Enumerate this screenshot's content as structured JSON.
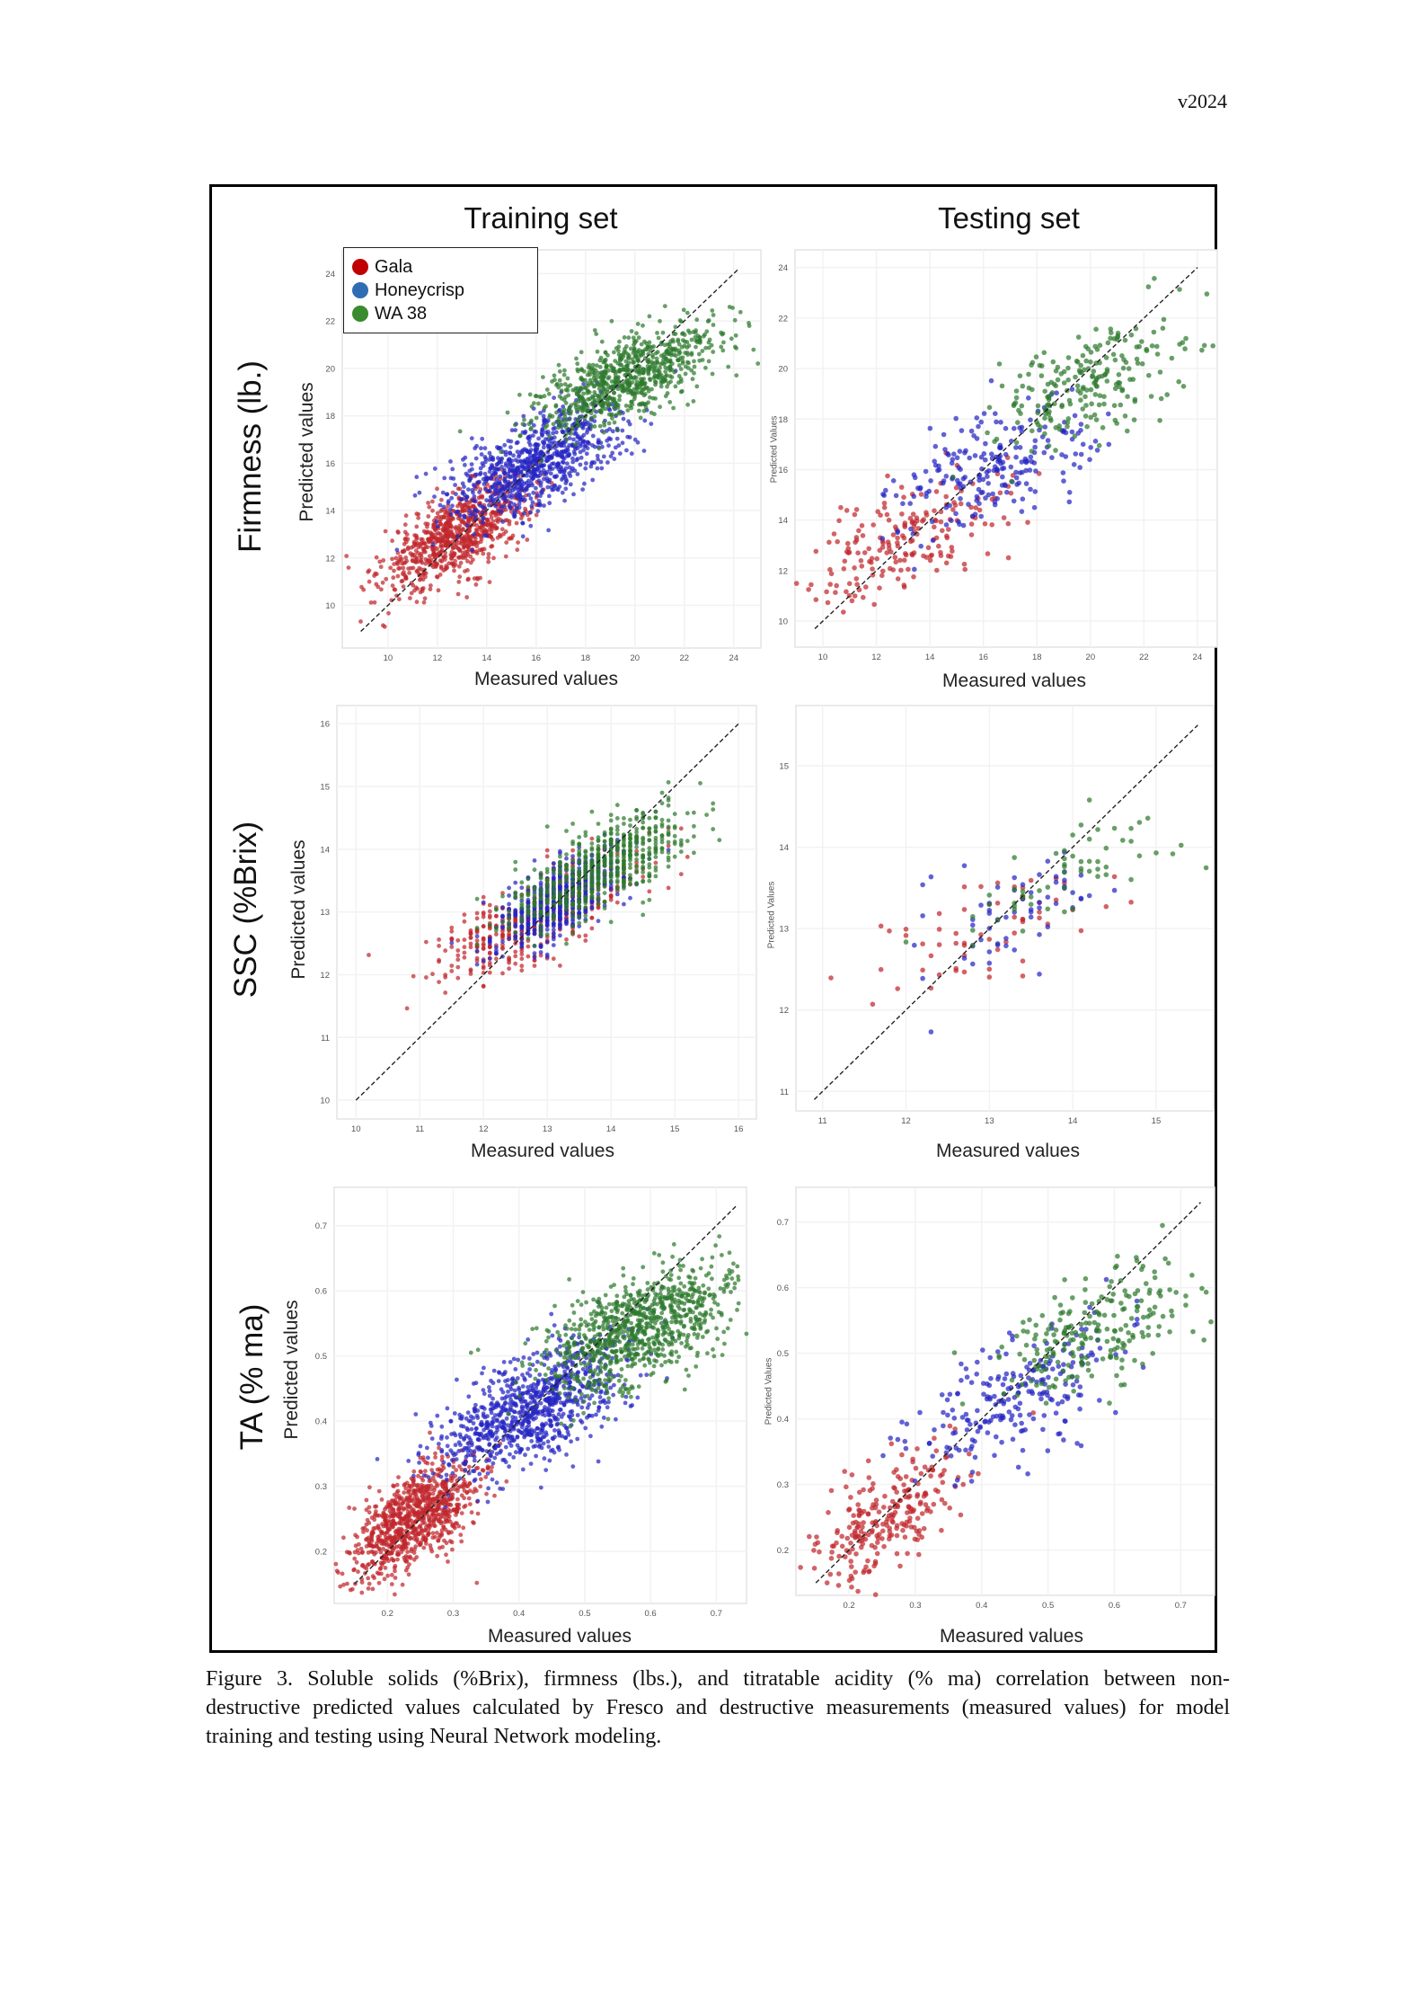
{
  "header": {
    "version": "v2024"
  },
  "columns": {
    "training": "Training set",
    "testing": "Testing set"
  },
  "rows": {
    "firmness": "Firmness (lb.)",
    "ssc": "SSC (%Brix)",
    "ta": "TA (% ma)"
  },
  "axis_labels": {
    "predicted": "Predicted values",
    "predicted_test": "Predicted Values",
    "measured": "Measured values"
  },
  "legend": {
    "items": [
      {
        "label": "Gala",
        "color": "#c00000"
      },
      {
        "label": "Honeycrisp",
        "color": "#2e6db4"
      },
      {
        "label": "WA 38",
        "color": "#3a8a2e"
      }
    ]
  },
  "caption": {
    "lines": [
      "Figure 3. Soluble solids (%Brix), firmness (lbs.), and titratable acidity (% ma) correlation between non-",
      "destructive predicted values calculated by Fresco and destructive measurements (measured values) for model",
      "training and testing using Neural Network modeling."
    ]
  },
  "chart_data": [
    {
      "id": "firm_train",
      "type": "scatter",
      "title": "Firmness (lb.) - Training set",
      "xlabel": "Measured values",
      "ylabel": "Predicted values",
      "xlim": [
        8.15,
        25.1
      ],
      "ylim": [
        8.2,
        25.0
      ],
      "xticks": [
        10,
        12,
        14,
        16,
        18,
        20,
        22,
        24
      ],
      "yticks": [
        10,
        12,
        14,
        16,
        18,
        20,
        22,
        24
      ],
      "identity_line": [
        8.9,
        24.2
      ],
      "grid": true,
      "legend": "top-left",
      "series": [
        {
          "name": "Gala",
          "color": "#c0272d",
          "cluster": {
            "mx": 12.8,
            "my": 13.0,
            "sdx": 1.5,
            "slope": 0.5,
            "sde": 0.85,
            "n": 800
          }
        },
        {
          "name": "Honeycrisp",
          "color": "#2626c4",
          "cluster": {
            "mx": 16.0,
            "my": 16.0,
            "sdx": 1.8,
            "slope": 0.45,
            "sde": 0.95,
            "n": 800
          }
        },
        {
          "name": "WA 38",
          "color": "#2e7a2e",
          "cluster": {
            "mx": 19.6,
            "my": 19.6,
            "sdx": 1.8,
            "slope": 0.4,
            "sde": 0.8,
            "n": 800
          }
        }
      ]
    },
    {
      "id": "firm_test",
      "type": "scatter",
      "title": "Firmness (lb.) - Testing set",
      "xlabel": "Measured values",
      "ylabel": "Predicted Values",
      "xlim": [
        8.96,
        24.74
      ],
      "ylim": [
        8.97,
        24.7
      ],
      "xticks": [
        10,
        12,
        14,
        16,
        18,
        20,
        22,
        24
      ],
      "yticks": [
        10,
        12,
        14,
        16,
        18,
        20,
        22,
        24
      ],
      "identity_line": [
        9.7,
        24.0
      ],
      "grid": true,
      "series": [
        {
          "name": "Gala",
          "color": "#c0272d",
          "cluster": {
            "mx": 13.3,
            "my": 13.2,
            "sdx": 2.0,
            "slope": 0.4,
            "sde": 1.1,
            "n": 200
          }
        },
        {
          "name": "Honeycrisp",
          "color": "#2626c4",
          "cluster": {
            "mx": 16.3,
            "my": 16.0,
            "sdx": 1.8,
            "slope": 0.35,
            "sde": 1.1,
            "n": 220
          }
        },
        {
          "name": "WA 38",
          "color": "#2e7a2e",
          "cluster": {
            "mx": 20.0,
            "my": 19.5,
            "sdx": 1.8,
            "slope": 0.35,
            "sde": 1.0,
            "n": 220
          }
        }
      ]
    },
    {
      "id": "ssc_train",
      "type": "scatter",
      "title": "SSC (%Brix) - Training set",
      "xlabel": "Measured values",
      "ylabel": "Predicted values",
      "xlim": [
        9.7,
        16.28
      ],
      "ylim": [
        9.7,
        16.29
      ],
      "xticks": [
        10,
        11,
        12,
        13,
        14,
        15,
        16
      ],
      "yticks": [
        10,
        11,
        12,
        13,
        14,
        15,
        16
      ],
      "identity_line": [
        10.0,
        16.0
      ],
      "grid": true,
      "x_step": 0.1,
      "series": [
        {
          "name": "Gala",
          "color": "#c0272d",
          "cluster": {
            "mx": 12.8,
            "my": 12.9,
            "sdx": 0.8,
            "slope": 0.45,
            "sde": 0.33,
            "n": 500
          }
        },
        {
          "name": "Honeycrisp",
          "color": "#2626c4",
          "cluster": {
            "mx": 13.2,
            "my": 13.2,
            "sdx": 0.5,
            "slope": 0.5,
            "sde": 0.28,
            "n": 600
          }
        },
        {
          "name": "WA 38",
          "color": "#2e7a2e",
          "cluster": {
            "mx": 13.8,
            "my": 13.7,
            "sdx": 0.7,
            "slope": 0.5,
            "sde": 0.33,
            "n": 600
          }
        }
      ]
    },
    {
      "id": "ssc_test",
      "type": "scatter",
      "title": "SSC (%Brix) - Testing set",
      "xlabel": "Measured values",
      "ylabel": "Predicted Values",
      "xlim": [
        10.68,
        15.69
      ],
      "ylim": [
        10.76,
        15.74
      ],
      "xticks": [
        11,
        12,
        13,
        14,
        15
      ],
      "yticks": [
        11,
        12,
        13,
        14,
        15
      ],
      "identity_line": [
        10.9,
        15.5
      ],
      "grid": true,
      "x_step": 0.1,
      "series": [
        {
          "name": "Gala",
          "color": "#c0272d",
          "cluster": {
            "mx": 12.9,
            "my": 12.9,
            "sdx": 0.8,
            "slope": 0.4,
            "sde": 0.33,
            "n": 60
          }
        },
        {
          "name": "Honeycrisp",
          "color": "#2626c4",
          "cluster": {
            "mx": 13.4,
            "my": 13.2,
            "sdx": 0.6,
            "slope": 0.4,
            "sde": 0.33,
            "n": 60
          }
        },
        {
          "name": "WA 38",
          "color": "#2e7a2e",
          "cluster": {
            "mx": 13.9,
            "my": 13.7,
            "sdx": 0.7,
            "slope": 0.45,
            "sde": 0.3,
            "n": 60
          }
        }
      ]
    },
    {
      "id": "ta_train",
      "type": "scatter",
      "title": "TA (% ma) - Training set",
      "xlabel": "Measured values",
      "ylabel": "Predicted values",
      "xlim": [
        0.119,
        0.746
      ],
      "ylim": [
        0.12,
        0.759
      ],
      "xticks": [
        0.2,
        0.3,
        0.4,
        0.5,
        0.6,
        0.7
      ],
      "yticks": [
        0.2,
        0.3,
        0.4,
        0.5,
        0.6,
        0.7
      ],
      "identity_line": [
        0.15,
        0.73
      ],
      "grid": true,
      "series": [
        {
          "name": "Gala",
          "color": "#c0272d",
          "cluster": {
            "mx": 0.24,
            "my": 0.25,
            "sdx": 0.05,
            "slope": 0.6,
            "sde": 0.035,
            "n": 900
          }
        },
        {
          "name": "Honeycrisp",
          "color": "#2626c4",
          "cluster": {
            "mx": 0.42,
            "my": 0.42,
            "sdx": 0.07,
            "slope": 0.45,
            "sde": 0.04,
            "n": 900
          }
        },
        {
          "name": "WA 38",
          "color": "#2e7a2e",
          "cluster": {
            "mx": 0.58,
            "my": 0.54,
            "sdx": 0.07,
            "slope": 0.4,
            "sde": 0.04,
            "n": 900
          }
        }
      ]
    },
    {
      "id": "ta_test",
      "type": "scatter",
      "title": "TA (% ma) - Testing set",
      "xlabel": "Measured values",
      "ylabel": "Predicted Values",
      "xlim": [
        0.12,
        0.751
      ],
      "ylim": [
        0.131,
        0.753
      ],
      "xticks": [
        0.2,
        0.3,
        0.4,
        0.5,
        0.6,
        0.7
      ],
      "yticks": [
        0.2,
        0.3,
        0.4,
        0.5,
        0.6,
        0.7
      ],
      "identity_line": [
        0.15,
        0.73
      ],
      "grid": true,
      "series": [
        {
          "name": "Gala",
          "color": "#c0272d",
          "cluster": {
            "mx": 0.25,
            "my": 0.25,
            "sdx": 0.06,
            "slope": 0.6,
            "sde": 0.04,
            "n": 250
          }
        },
        {
          "name": "Honeycrisp",
          "color": "#2626c4",
          "cluster": {
            "mx": 0.45,
            "my": 0.43,
            "sdx": 0.08,
            "slope": 0.4,
            "sde": 0.045,
            "n": 230
          }
        },
        {
          "name": "WA 38",
          "color": "#2e7a2e",
          "cluster": {
            "mx": 0.58,
            "my": 0.54,
            "sdx": 0.07,
            "slope": 0.35,
            "sde": 0.04,
            "n": 220
          }
        }
      ]
    }
  ]
}
